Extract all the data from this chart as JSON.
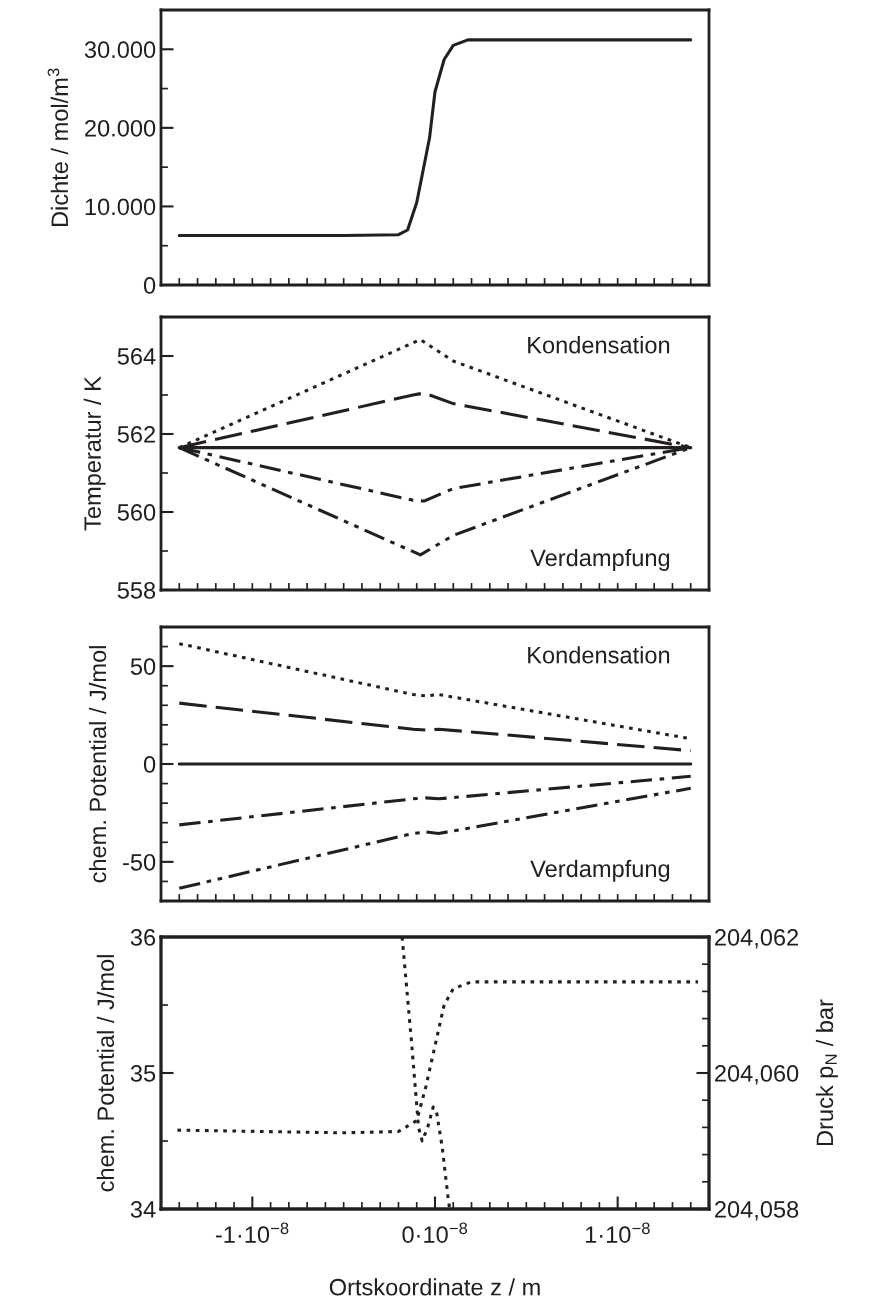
{
  "chart_data": [
    {
      "type": "line",
      "ylabel": "Dichte / mol/m$^{3}$",
      "tick_labels": "y",
      "xlim": [
        -1.5e-08,
        1.5e-08
      ],
      "ylim": [
        0,
        35000
      ],
      "xticks": [
        {
          "value": -1.4e-08,
          "label": null
        },
        {
          "value": -1.3e-08,
          "label": null
        },
        {
          "value": -1.2e-08,
          "label": null
        },
        {
          "value": -1.1e-08,
          "label": null
        },
        {
          "value": -1e-08,
          "label": null
        },
        {
          "value": -9e-09,
          "label": null
        },
        {
          "value": -8e-09,
          "label": null
        },
        {
          "value": -7e-09,
          "label": null
        },
        {
          "value": -6e-09,
          "label": null
        },
        {
          "value": -5e-09,
          "label": null
        },
        {
          "value": -4e-09,
          "label": null
        },
        {
          "value": -3e-09,
          "label": null
        },
        {
          "value": -2e-09,
          "label": null
        },
        {
          "value": -1e-09,
          "label": null
        },
        {
          "value": 0,
          "label": null
        },
        {
          "value": 1e-09,
          "label": null
        },
        {
          "value": 2e-09,
          "label": null
        },
        {
          "value": 3e-09,
          "label": null
        },
        {
          "value": 4e-09,
          "label": null
        },
        {
          "value": 5e-09,
          "label": null
        },
        {
          "value": 6e-09,
          "label": null
        },
        {
          "value": 7e-09,
          "label": null
        },
        {
          "value": 8e-09,
          "label": null
        },
        {
          "value": 9e-09,
          "label": null
        },
        {
          "value": 1e-08,
          "label": null
        },
        {
          "value": 1.1e-08,
          "label": null
        },
        {
          "value": 1.2e-08,
          "label": null
        },
        {
          "value": 1.3e-08,
          "label": null
        },
        {
          "value": 1.4e-08,
          "label": null
        }
      ],
      "yticks": [
        {
          "value": 0,
          "label": "0"
        },
        {
          "value": 5000,
          "label": null
        },
        {
          "value": 10000,
          "label": "10.000"
        },
        {
          "value": 15000,
          "label": null
        },
        {
          "value": 20000,
          "label": "20.000"
        },
        {
          "value": 25000,
          "label": null
        },
        {
          "value": 30000,
          "label": "30.000"
        }
      ],
      "series": [
        {
          "color": "#231f20",
          "line_style": "solid",
          "x": [
            -1.4e-08,
            -5e-09,
            -2e-09,
            -1.5e-09,
            -1e-09,
            -3e-10,
            0,
            5e-10,
            1e-09,
            1.8e-09,
            1.4e-08
          ],
          "values": [
            6300,
            6300,
            6400,
            7000,
            10500,
            18700,
            24600,
            28700,
            30500,
            31200,
            31200
          ]
        }
      ]
    },
    {
      "type": "line",
      "ylabel": "Temperatur / K",
      "tick_labels": "y",
      "xlim": [
        -1.5e-08,
        1.5e-08
      ],
      "ylim": [
        558,
        565
      ],
      "xticks": [
        {
          "value": -1.4e-08,
          "label": null
        },
        {
          "value": -1.3e-08,
          "label": null
        },
        {
          "value": -1.2e-08,
          "label": null
        },
        {
          "value": -1.1e-08,
          "label": null
        },
        {
          "value": -1e-08,
          "label": null
        },
        {
          "value": -9e-09,
          "label": null
        },
        {
          "value": -8e-09,
          "label": null
        },
        {
          "value": -7e-09,
          "label": null
        },
        {
          "value": -6e-09,
          "label": null
        },
        {
          "value": -5e-09,
          "label": null
        },
        {
          "value": -4e-09,
          "label": null
        },
        {
          "value": -3e-09,
          "label": null
        },
        {
          "value": -2e-09,
          "label": null
        },
        {
          "value": -1e-09,
          "label": null
        },
        {
          "value": 0,
          "label": null
        },
        {
          "value": 1e-09,
          "label": null
        },
        {
          "value": 2e-09,
          "label": null
        },
        {
          "value": 3e-09,
          "label": null
        },
        {
          "value": 4e-09,
          "label": null
        },
        {
          "value": 5e-09,
          "label": null
        },
        {
          "value": 6e-09,
          "label": null
        },
        {
          "value": 7e-09,
          "label": null
        },
        {
          "value": 8e-09,
          "label": null
        },
        {
          "value": 9e-09,
          "label": null
        },
        {
          "value": 1e-08,
          "label": null
        },
        {
          "value": 1.1e-08,
          "label": null
        },
        {
          "value": 1.2e-08,
          "label": null
        },
        {
          "value": 1.3e-08,
          "label": null
        },
        {
          "value": 1.4e-08,
          "label": null
        }
      ],
      "yticks": [
        {
          "value": 558,
          "label": "558"
        },
        {
          "value": 559,
          "label": null
        },
        {
          "value": 560,
          "label": "560"
        },
        {
          "value": 561,
          "label": null
        },
        {
          "value": 562,
          "label": "562"
        },
        {
          "value": 563,
          "label": null
        },
        {
          "value": 564,
          "label": "564"
        }
      ],
      "annotations": [
        "Kondensation",
        "Verdampfung"
      ],
      "series": [
        {
          "color": "#231f20",
          "line_style": "dotted",
          "x": [
            -1.4e-08,
            -8e-10,
            1e-09,
            1.4e-08
          ],
          "values": [
            561.65,
            564.42,
            563.87,
            561.65
          ]
        },
        {
          "color": "#231f20",
          "line_style": "dashed",
          "x": [
            -1.4e-08,
            -1.2e-09,
            -6e-10,
            1e-09,
            1.4e-08
          ],
          "values": [
            561.65,
            563.0,
            563.05,
            562.78,
            561.65
          ]
        },
        {
          "color": "#231f20",
          "line_style": "solid",
          "x": [
            -1.4e-08,
            1.4e-08
          ],
          "values": [
            561.65,
            561.65
          ]
        },
        {
          "color": "#231f20",
          "line_style": "dashdot",
          "x": [
            -1.4e-08,
            -1.2e-09,
            -6e-10,
            1e-09,
            1.4e-08
          ],
          "values": [
            561.65,
            560.3,
            560.28,
            560.6,
            561.65
          ]
        },
        {
          "color": "#231f20",
          "line_style": "dashdotdot",
          "x": [
            -1.4e-08,
            -8e-10,
            1e-09,
            1.4e-08
          ],
          "values": [
            561.65,
            558.9,
            559.4,
            561.65
          ]
        }
      ]
    },
    {
      "type": "line",
      "ylabel": "chem. Potential / J/mol",
      "tick_labels": "y",
      "xlim": [
        -1.5e-08,
        1.5e-08
      ],
      "ylim": [
        -70,
        70
      ],
      "xticks": [
        {
          "value": -1.4e-08,
          "label": null
        },
        {
          "value": -1.3e-08,
          "label": null
        },
        {
          "value": -1.2e-08,
          "label": null
        },
        {
          "value": -1.1e-08,
          "label": null
        },
        {
          "value": -1e-08,
          "label": null
        },
        {
          "value": -9e-09,
          "label": null
        },
        {
          "value": -8e-09,
          "label": null
        },
        {
          "value": -7e-09,
          "label": null
        },
        {
          "value": -6e-09,
          "label": null
        },
        {
          "value": -5e-09,
          "label": null
        },
        {
          "value": -4e-09,
          "label": null
        },
        {
          "value": -3e-09,
          "label": null
        },
        {
          "value": -2e-09,
          "label": null
        },
        {
          "value": -1e-09,
          "label": null
        },
        {
          "value": 0,
          "label": null
        },
        {
          "value": 1e-09,
          "label": null
        },
        {
          "value": 2e-09,
          "label": null
        },
        {
          "value": 3e-09,
          "label": null
        },
        {
          "value": 4e-09,
          "label": null
        },
        {
          "value": 5e-09,
          "label": null
        },
        {
          "value": 6e-09,
          "label": null
        },
        {
          "value": 7e-09,
          "label": null
        },
        {
          "value": 8e-09,
          "label": null
        },
        {
          "value": 9e-09,
          "label": null
        },
        {
          "value": 1e-08,
          "label": null
        },
        {
          "value": 1.1e-08,
          "label": null
        },
        {
          "value": 1.2e-08,
          "label": null
        },
        {
          "value": 1.3e-08,
          "label": null
        },
        {
          "value": 1.4e-08,
          "label": null
        }
      ],
      "yticks": [
        {
          "value": -60,
          "label": null
        },
        {
          "value": -50,
          "label": "-50"
        },
        {
          "value": -40,
          "label": null
        },
        {
          "value": -30,
          "label": null
        },
        {
          "value": -20,
          "label": null
        },
        {
          "value": -10,
          "label": null
        },
        {
          "value": 0,
          "label": "0"
        },
        {
          "value": 10,
          "label": null
        },
        {
          "value": 20,
          "label": null
        },
        {
          "value": 30,
          "label": null
        },
        {
          "value": 40,
          "label": null
        },
        {
          "value": 50,
          "label": "50"
        },
        {
          "value": 60,
          "label": null
        }
      ],
      "annotations": [
        "Kondensation",
        "Verdampfung"
      ],
      "series": [
        {
          "color": "#231f20",
          "line_style": "dotted",
          "x": [
            -1.4e-08,
            -1.2e-09,
            -5e-10,
            2e-10,
            1.4e-08
          ],
          "values": [
            61.5,
            35.5,
            34.8,
            35.5,
            12.9
          ]
        },
        {
          "color": "#231f20",
          "line_style": "dashed",
          "x": [
            -1.4e-08,
            -1.2e-09,
            -5e-10,
            2e-10,
            1.4e-08
          ],
          "values": [
            31.1,
            17.8,
            17.3,
            17.8,
            6.8
          ]
        },
        {
          "color": "#231f20",
          "line_style": "solid",
          "x": [
            -1.4e-08,
            1.4e-08
          ],
          "values": [
            0,
            0
          ]
        },
        {
          "color": "#231f20",
          "line_style": "dashdot",
          "x": [
            -1.4e-08,
            -1.2e-09,
            -5e-10,
            2e-10,
            1.4e-08
          ],
          "values": [
            -31.1,
            -17.8,
            -17.3,
            -17.8,
            -6.3
          ]
        },
        {
          "color": "#231f20",
          "line_style": "dashdotdot",
          "x": [
            -1.4e-08,
            -1.2e-09,
            -5e-10,
            2e-10,
            1.4e-08
          ],
          "values": [
            -63.5,
            -35.5,
            -34.7,
            -35.5,
            -12.4
          ]
        }
      ]
    },
    {
      "type": "line",
      "ylabel": "chem. Potential / J/mol",
      "y2label": "Druck p$_{N}$ / bar",
      "xlabel": "Ortskoordinate z / m",
      "xlim": [
        -1.5e-08,
        1.5e-08
      ],
      "ylim": [
        34,
        36
      ],
      "y2lim": [
        204.058,
        204.062
      ],
      "xticks": [
        {
          "value": -1.4e-08,
          "label": null
        },
        {
          "value": -1.3e-08,
          "label": null
        },
        {
          "value": -1.2e-08,
          "label": null
        },
        {
          "value": -1.1e-08,
          "label": null
        },
        {
          "value": -1e-08,
          "label": "-1·10$^{−8}$"
        },
        {
          "value": -9e-09,
          "label": null
        },
        {
          "value": -8e-09,
          "label": null
        },
        {
          "value": -7e-09,
          "label": null
        },
        {
          "value": -6e-09,
          "label": null
        },
        {
          "value": -5e-09,
          "label": null
        },
        {
          "value": -4e-09,
          "label": null
        },
        {
          "value": -3e-09,
          "label": null
        },
        {
          "value": -2e-09,
          "label": null
        },
        {
          "value": -1e-09,
          "label": null
        },
        {
          "value": 0,
          "label": "0·10$^{−8}$"
        },
        {
          "value": 1e-09,
          "label": null
        },
        {
          "value": 2e-09,
          "label": null
        },
        {
          "value": 3e-09,
          "label": null
        },
        {
          "value": 4e-09,
          "label": null
        },
        {
          "value": 5e-09,
          "label": null
        },
        {
          "value": 6e-09,
          "label": null
        },
        {
          "value": 7e-09,
          "label": null
        },
        {
          "value": 8e-09,
          "label": null
        },
        {
          "value": 9e-09,
          "label": null
        },
        {
          "value": 1e-08,
          "label": "1·10$^{−8}$"
        },
        {
          "value": 1.1e-08,
          "label": null
        },
        {
          "value": 1.2e-08,
          "label": null
        },
        {
          "value": 1.3e-08,
          "label": null
        },
        {
          "value": 1.4e-08,
          "label": null
        }
      ],
      "yticks": [
        {
          "value": 34,
          "label": "34"
        },
        {
          "value": 34.5,
          "label": null
        },
        {
          "value": 35,
          "label": "35"
        },
        {
          "value": 35.5,
          "label": null
        },
        {
          "value": 36,
          "label": "36"
        }
      ],
      "y2ticks": [
        {
          "value": 204.058,
          "label": "204,058"
        },
        {
          "value": 204.0584,
          "label": null
        },
        {
          "value": 204.0588,
          "label": null
        },
        {
          "value": 204.0592,
          "label": null
        },
        {
          "value": 204.0596,
          "label": null
        },
        {
          "value": 204.06,
          "label": "204,060"
        },
        {
          "value": 204.0604,
          "label": null
        },
        {
          "value": 204.0608,
          "label": null
        },
        {
          "value": 204.0612,
          "label": null
        },
        {
          "value": 204.0616,
          "label": null
        },
        {
          "value": 204.062,
          "label": "204,062"
        }
      ],
      "series": [
        {
          "color": "#231f20",
          "line_style": "dotted",
          "x": [
            -1.41e-08,
            -5e-09,
            -2e-09,
            -1e-09,
            -5e-10,
            0,
            5e-10,
            1e-09,
            2e-09,
            1.44e-08
          ],
          "values": [
            34.58,
            34.56,
            34.57,
            34.65,
            34.9,
            35.2,
            35.5,
            35.62,
            35.67,
            35.67
          ]
        },
        {
          "color": "#231f20",
          "line_style": "dotted",
          "axis": "y2",
          "x": [
            -1.8e-09,
            -1.3e-09,
            -9e-10,
            -7e-10,
            -4e-10,
            -1e-10,
            1e-10,
            4e-10,
            7e-10,
            8e-10
          ],
          "values": [
            204.062,
            204.0605,
            204.0592,
            204.059,
            204.0592,
            204.0595,
            204.0594,
            204.0589,
            204.0582,
            204.058
          ]
        }
      ]
    }
  ]
}
